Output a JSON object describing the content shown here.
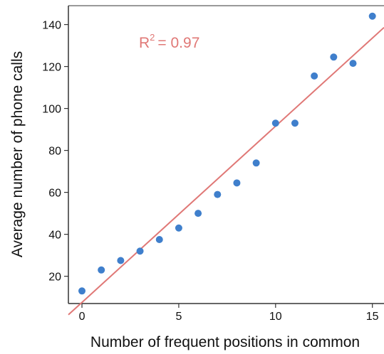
{
  "chart_data": {
    "type": "scatter",
    "xlabel": "Number of frequent positions in common",
    "ylabel": "Average number of phone calls",
    "xlim": [
      -0.7,
      15.6
    ],
    "ylim": [
      7,
      149
    ],
    "xticks": [
      0,
      5,
      10,
      15
    ],
    "yticks": [
      20,
      40,
      60,
      80,
      100,
      120,
      140
    ],
    "grid": false,
    "points": [
      {
        "x": 0,
        "y": 13
      },
      {
        "x": 1,
        "y": 23
      },
      {
        "x": 2,
        "y": 27.5
      },
      {
        "x": 3,
        "y": 32
      },
      {
        "x": 4,
        "y": 37.5
      },
      {
        "x": 5,
        "y": 43
      },
      {
        "x": 6,
        "y": 50
      },
      {
        "x": 7,
        "y": 59
      },
      {
        "x": 8,
        "y": 64.5
      },
      {
        "x": 9,
        "y": 74
      },
      {
        "x": 10,
        "y": 93
      },
      {
        "x": 11,
        "y": 93
      },
      {
        "x": 12,
        "y": 115.5
      },
      {
        "x": 13,
        "y": 124.5
      },
      {
        "x": 14,
        "y": 121.5
      },
      {
        "x": 15,
        "y": 144
      }
    ],
    "fit_line": {
      "x0": -0.7,
      "y0": 1.65,
      "x1": 15.6,
      "y1": 138.6
    },
    "annotation": {
      "r_symbol": "R",
      "superscript": "2",
      "value": "= 0.97"
    },
    "colors": {
      "points": "#3f7fcc",
      "fit": "#e07876",
      "annotation": "#e07876",
      "axis": "#333333"
    }
  }
}
